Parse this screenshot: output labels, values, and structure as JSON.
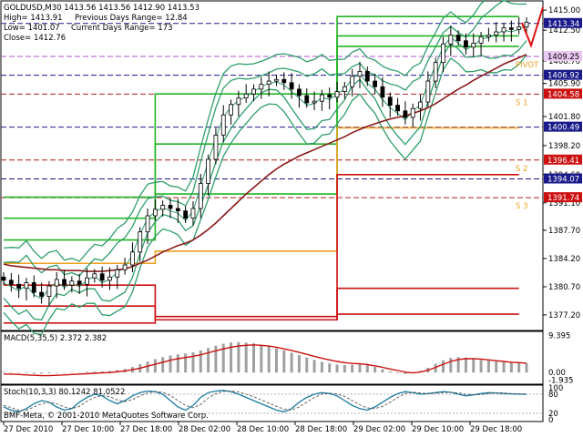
{
  "window": {
    "symbol_line": "GOLDUSD,M30  1413.56 1413.56 1412.90 1413.53",
    "high_line": "High= 1413.91",
    "low_line": "Low= 1401.07",
    "close_line": "Close=  1412.76",
    "prev_range_line": "Previous Days Range= 12.84",
    "curr_range_line": "Current Days Range= 173",
    "copyright": "BMF-Meta, © 2001-2010 MetaQuotes Software Corp."
  },
  "colors": {
    "bg": "#ffffff",
    "candle": "#000000",
    "bollinger": "#2e9e6a",
    "ma": "#8b1a1a",
    "pivot_green": "#22b422",
    "pivot_orange": "#f0a020",
    "pivot_red": "#cc1010",
    "hline_blue": "#1a1a8a",
    "hline_purple": "#b050d0",
    "hline_red": "#b02020",
    "macd_hist": "#a0a0a0",
    "macd_signal": "#cc1010",
    "stoch_main": "#1a7aa0",
    "stoch_signal": "#555555",
    "axis": "#000000"
  },
  "price_axis": {
    "ticks": [
      "1415.00",
      "1412.50",
      "1408.70",
      "1405.90",
      "1401.80",
      "1398.20",
      "1394.60",
      "1391.10",
      "1387.70",
      "1384.20",
      "1380.70",
      "1377.20"
    ],
    "tick_values": [
      1415.0,
      1412.5,
      1408.7,
      1405.9,
      1401.8,
      1398.2,
      1394.6,
      1391.1,
      1387.7,
      1384.2,
      1380.7,
      1377.2
    ]
  },
  "price_labels": [
    {
      "text": "1413.34",
      "value": 1413.34,
      "bg": "#1a1a8a",
      "fg": "#ffffff"
    },
    {
      "text": "1409.25",
      "value": 1409.25,
      "bg": "#e9c8f2",
      "fg": "#000000"
    },
    {
      "text": "1406.92",
      "value": 1406.92,
      "bg": "#1a1a8a",
      "fg": "#ffffff"
    },
    {
      "text": "1404.58",
      "value": 1404.58,
      "bg": "#cc1010",
      "fg": "#ffffff"
    },
    {
      "text": "1400.49",
      "value": 1400.49,
      "bg": "#1a1a8a",
      "fg": "#ffffff"
    },
    {
      "text": "1396.41",
      "value": 1396.41,
      "bg": "#cc1010",
      "fg": "#ffffff"
    },
    {
      "text": "1394.07",
      "value": 1394.07,
      "bg": "#1a1a8a",
      "fg": "#ffffff"
    },
    {
      "text": "1391.74",
      "value": 1391.74,
      "bg": "#cc1010",
      "fg": "#ffffff"
    }
  ],
  "pivot_tags": [
    {
      "text": "PIVOT",
      "value": 1409.25
    },
    {
      "text": "S 1",
      "value": 1404.58
    },
    {
      "text": "S 2",
      "value": 1396.41
    },
    {
      "text": "S 3",
      "value": 1391.74
    }
  ],
  "macd": {
    "title": "MACD(5,35,5) 2.372 2.382",
    "ticks": [
      "9.395",
      "0.00",
      "-1.935"
    ]
  },
  "stoch": {
    "title": "Stoch(10,3,3) 80.1242 81.0522",
    "ticks": [
      "100",
      "80",
      "20",
      "0"
    ]
  },
  "time_axis": {
    "labels": [
      "27 Dec 2010",
      "27 Dec 10:00",
      "27 Dec 18:00",
      "28 Dec 02:00",
      "28 Dec 10:00",
      "28 Dec 18:00",
      "29 Dec 02:00",
      "29 Dec 10:00",
      "29 Dec 18:00"
    ]
  },
  "chart_data": {
    "type": "candlestick",
    "symbol": "GOLDUSD",
    "timeframe": "M30",
    "ylim": [
      1375.5,
      1415.8
    ],
    "close_path": [
      1381.5,
      1381.0,
      1380.5,
      1381.2,
      1380.0,
      1379.5,
      1380.8,
      1381.6,
      1380.9,
      1381.4,
      1381.0,
      1381.8,
      1382.3,
      1381.5,
      1381.9,
      1382.8,
      1383.4,
      1385.0,
      1387.5,
      1389.5,
      1390.3,
      1390.8,
      1390.4,
      1390.1,
      1389.2,
      1390.4,
      1393.5,
      1396.5,
      1399.5,
      1402.0,
      1403.3,
      1404.1,
      1404.6,
      1405.2,
      1405.8,
      1406.2,
      1406.4,
      1406.0,
      1405.2,
      1404.4,
      1403.5,
      1403.7,
      1404.5,
      1404.2,
      1404.9,
      1405.5,
      1406.8,
      1407.4,
      1406.2,
      1405.5,
      1404.2,
      1403.2,
      1402.5,
      1401.7,
      1402.8,
      1403.6,
      1406.2,
      1408.5,
      1410.8,
      1411.9,
      1411.2,
      1410.4,
      1410.9,
      1411.7,
      1411.9,
      1412.3,
      1412.8,
      1412.6,
      1412.9,
      1413.5
    ],
    "moving_average_path": [
      1383.5,
      1383.3,
      1383.2,
      1383.1,
      1383.0,
      1382.9,
      1382.8,
      1382.8,
      1382.7,
      1382.7,
      1382.7,
      1382.6,
      1382.6,
      1382.6,
      1382.7,
      1382.8,
      1382.9,
      1383.2,
      1383.6,
      1384.0,
      1384.5,
      1385.0,
      1385.4,
      1385.8,
      1386.1,
      1386.5,
      1387.1,
      1387.8,
      1388.6,
      1389.5,
      1390.4,
      1391.3,
      1392.2,
      1393.0,
      1393.8,
      1394.6,
      1395.3,
      1395.9,
      1396.4,
      1396.9,
      1397.3,
      1397.7,
      1398.1,
      1398.5,
      1398.9,
      1399.3,
      1399.8,
      1400.2,
      1400.6,
      1400.9,
      1401.2,
      1401.5,
      1401.7,
      1401.9,
      1402.2,
      1402.5,
      1402.9,
      1403.4,
      1404.0,
      1404.6,
      1405.2,
      1405.7,
      1406.3,
      1406.8,
      1407.3,
      1407.8,
      1408.3,
      1408.7,
      1409.1,
      1409.5
    ],
    "horizontal_lines": [
      {
        "value": 1413.34,
        "style": "dashed",
        "color": "#1a1a8a"
      },
      {
        "value": 1409.25,
        "style": "dashed",
        "color": "#b050d0"
      },
      {
        "value": 1406.92,
        "style": "dashed",
        "color": "#1a1a8a"
      },
      {
        "value": 1404.58,
        "style": "dashed",
        "color": "#b02020"
      },
      {
        "value": 1400.49,
        "style": "dashed",
        "color": "#1a1a8a"
      },
      {
        "value": 1396.41,
        "style": "dashed",
        "color": "#b02020"
      },
      {
        "value": 1394.07,
        "style": "dashed",
        "color": "#1a1a8a"
      },
      {
        "value": 1391.74,
        "style": "dashed",
        "color": "#b02020"
      }
    ],
    "macd_hist": [
      0.2,
      0.1,
      -0.1,
      -0.2,
      -0.3,
      -0.3,
      -0.2,
      -0.1,
      0.0,
      0.1,
      0.1,
      0.2,
      0.2,
      0.3,
      0.4,
      0.6,
      0.9,
      1.4,
      2.1,
      2.8,
      3.4,
      3.9,
      4.3,
      4.6,
      4.8,
      5.1,
      5.6,
      6.2,
      6.8,
      7.3,
      7.6,
      7.7,
      7.6,
      7.4,
      7.0,
      6.6,
      6.1,
      5.6,
      5.0,
      4.4,
      3.8,
      3.2,
      2.7,
      2.3,
      2.0,
      1.9,
      2.0,
      2.1,
      1.8,
      1.4,
      0.8,
      0.3,
      -0.2,
      -0.4,
      -0.2,
      0.4,
      1.2,
      2.2,
      3.1,
      3.7,
      3.9,
      3.8,
      3.5,
      3.2,
      3.0,
      2.8,
      2.6,
      2.5,
      2.4,
      2.37
    ],
    "macd_signal": [
      -0.4,
      -0.4,
      -0.5,
      -0.6,
      -0.7,
      -0.8,
      -0.8,
      -0.7,
      -0.6,
      -0.5,
      -0.4,
      -0.3,
      -0.2,
      -0.1,
      0.0,
      0.2,
      0.4,
      0.7,
      1.1,
      1.6,
      2.1,
      2.6,
      3.1,
      3.5,
      3.8,
      4.1,
      4.5,
      5.0,
      5.5,
      6.0,
      6.4,
      6.7,
      6.9,
      7.0,
      6.9,
      6.7,
      6.4,
      6.0,
      5.6,
      5.1,
      4.6,
      4.1,
      3.6,
      3.2,
      2.8,
      2.5,
      2.3,
      2.2,
      2.0,
      1.7,
      1.3,
      0.9,
      0.5,
      0.1,
      -0.1,
      0.1,
      0.6,
      1.3,
      2.1,
      2.8,
      3.3,
      3.5,
      3.5,
      3.4,
      3.2,
      3.0,
      2.8,
      2.6,
      2.5,
      2.38
    ],
    "stoch_main": [
      40,
      30,
      25,
      35,
      50,
      60,
      55,
      40,
      30,
      35,
      55,
      70,
      80,
      75,
      60,
      50,
      60,
      75,
      85,
      90,
      88,
      80,
      60,
      40,
      30,
      45,
      70,
      85,
      90,
      92,
      88,
      80,
      70,
      60,
      50,
      40,
      30,
      25,
      35,
      55,
      70,
      80,
      85,
      82,
      75,
      60,
      45,
      35,
      30,
      40,
      55,
      70,
      82,
      88,
      85,
      80,
      82,
      85,
      88,
      86,
      80,
      75,
      78,
      82,
      85,
      84,
      82,
      81,
      80,
      80.1
    ],
    "stoch_signal": [
      45,
      38,
      30,
      30,
      40,
      50,
      55,
      50,
      40,
      35,
      42,
      58,
      70,
      76,
      72,
      62,
      57,
      63,
      75,
      84,
      88,
      86,
      76,
      60,
      45,
      38,
      48,
      68,
      82,
      89,
      90,
      87,
      80,
      72,
      62,
      52,
      42,
      33,
      30,
      40,
      55,
      70,
      80,
      83,
      81,
      73,
      60,
      47,
      37,
      35,
      42,
      55,
      70,
      82,
      86,
      84,
      82,
      83,
      85,
      86,
      84,
      80,
      78,
      79,
      82,
      84,
      84,
      82,
      81,
      81.05
    ]
  }
}
